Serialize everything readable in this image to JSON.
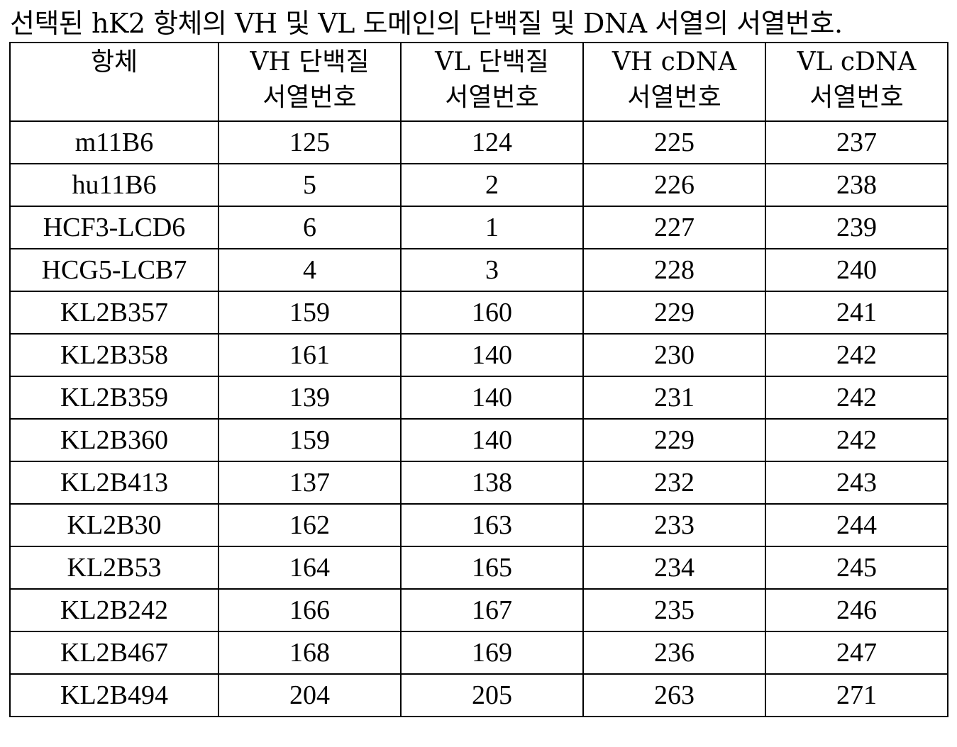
{
  "caption": "선택된 hK2 항체의 VH 및 VL 도메인의 단백질 및 DNA 서열의 서열번호.",
  "table": {
    "headers": [
      {
        "line1": "항체",
        "line2": ""
      },
      {
        "line1": "VH 단백질",
        "line2": "서열번호"
      },
      {
        "line1": "VL 단백질",
        "line2": "서열번호"
      },
      {
        "line1": "VH cDNA",
        "line2": "서열번호"
      },
      {
        "line1": "VL cDNA",
        "line2": "서열번호"
      }
    ],
    "rows": [
      [
        "m11B6",
        "125",
        "124",
        "225",
        "237"
      ],
      [
        "hu11B6",
        "5",
        "2",
        "226",
        "238"
      ],
      [
        "HCF3-LCD6",
        "6",
        "1",
        "227",
        "239"
      ],
      [
        "HCG5-LCB7",
        "4",
        "3",
        "228",
        "240"
      ],
      [
        "KL2B357",
        "159",
        "160",
        "229",
        "241"
      ],
      [
        "KL2B358",
        "161",
        "140",
        "230",
        "242"
      ],
      [
        "KL2B359",
        "139",
        "140",
        "231",
        "242"
      ],
      [
        "KL2B360",
        "159",
        "140",
        "229",
        "242"
      ],
      [
        "KL2B413",
        "137",
        "138",
        "232",
        "243"
      ],
      [
        "KL2B30",
        "162",
        "163",
        "233",
        "244"
      ],
      [
        "KL2B53",
        "164",
        "165",
        "234",
        "245"
      ],
      [
        "KL2B242",
        "166",
        "167",
        "235",
        "246"
      ],
      [
        "KL2B467",
        "168",
        "169",
        "236",
        "247"
      ],
      [
        "KL2B494",
        "204",
        "205",
        "263",
        "271"
      ]
    ]
  }
}
